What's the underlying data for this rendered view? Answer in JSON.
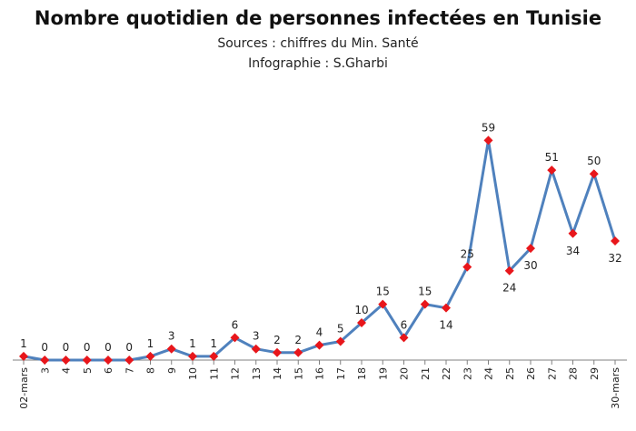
{
  "header": {
    "title": "Nombre quotidien  de personnes infectées en Tunisie",
    "subtitle_source": "Sources : chiffres du Min. Santé",
    "subtitle_credit": "Infographie : S.Gharbi"
  },
  "colors": {
    "line": "#4f81bd",
    "marker": "#e8161b",
    "axis": "#808080"
  },
  "chart_data": {
    "type": "line",
    "title": "Nombre quotidien  de personnes infectées en Tunisie",
    "xlabel": "",
    "ylabel": "",
    "ylim": [
      0,
      63
    ],
    "grid": false,
    "legend": "none",
    "categories": [
      "02-mars",
      "3",
      "4",
      "5",
      "6",
      "7",
      "8",
      "9",
      "10",
      "11",
      "12",
      "13",
      "14",
      "15",
      "16",
      "17",
      "18",
      "19",
      "20",
      "21",
      "22",
      "23",
      "24",
      "25",
      "26",
      "27",
      "28",
      "29",
      "30-mars"
    ],
    "values": [
      1,
      0,
      0,
      0,
      0,
      0,
      1,
      3,
      1,
      1,
      6,
      3,
      2,
      2,
      4,
      5,
      10,
      15,
      6,
      15,
      14,
      25,
      59,
      24,
      30,
      51,
      34,
      50,
      32
    ],
    "label_position": [
      "above",
      "above",
      "above",
      "above",
      "above",
      "above",
      "above",
      "above",
      "above",
      "above",
      "above",
      "above",
      "above",
      "above",
      "above",
      "above",
      "above",
      "above",
      "above",
      "above",
      "below",
      "above",
      "above",
      "below",
      "below",
      "above",
      "below",
      "above",
      "below"
    ]
  }
}
